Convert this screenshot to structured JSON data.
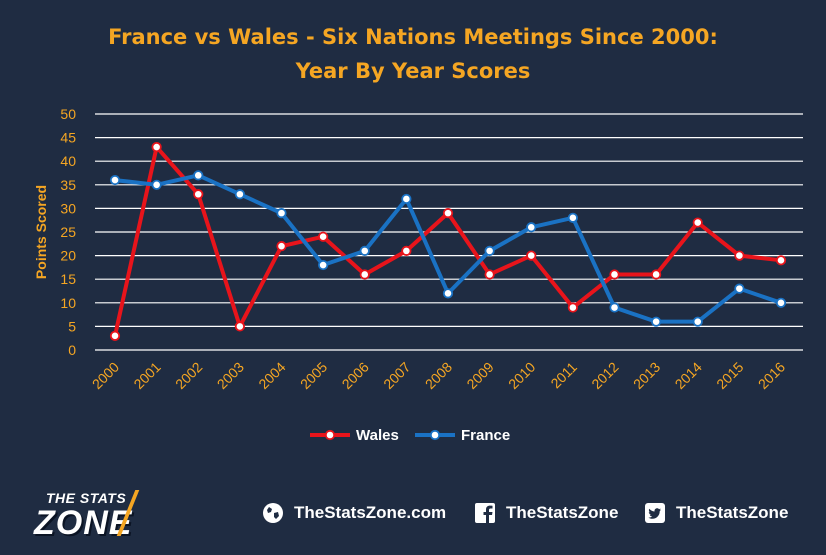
{
  "chart_data": {
    "type": "line",
    "title": "France vs Wales - Six Nations Meetings Since 2000:",
    "subtitle": "Year By Year Scores",
    "xlabel": "",
    "ylabel": "Points Scored",
    "ylim": [
      0,
      50
    ],
    "yticks": [
      "0",
      "5",
      "10",
      "15",
      "20",
      "25",
      "30",
      "35",
      "40",
      "45",
      "50"
    ],
    "categories": [
      "2000",
      "2001",
      "2002",
      "2003",
      "2004",
      "2005",
      "2006",
      "2007",
      "2008",
      "2009",
      "2010",
      "2011",
      "2012",
      "2013",
      "2014",
      "2015",
      "2016"
    ],
    "series": [
      {
        "name": "Wales",
        "color": "#e8141b",
        "values": [
          3,
          43,
          33,
          5,
          22,
          24,
          16,
          21,
          29,
          16,
          20,
          9,
          16,
          16,
          27,
          20,
          19
        ]
      },
      {
        "name": "France",
        "color": "#1a72c4",
        "values": [
          36,
          35,
          37,
          33,
          29,
          18,
          21,
          32,
          12,
          21,
          26,
          28,
          9,
          6,
          6,
          13,
          10
        ]
      }
    ],
    "grid": true,
    "legend_position": "bottom"
  },
  "footer": {
    "logo_top": "THE STATS",
    "logo_main": "ZONE",
    "website": "TheStatsZone.com",
    "facebook": "TheStatsZone",
    "twitter": "TheStatsZone",
    "website_icon": "globe-icon",
    "facebook_icon": "facebook-icon",
    "twitter_icon": "twitter-icon"
  }
}
